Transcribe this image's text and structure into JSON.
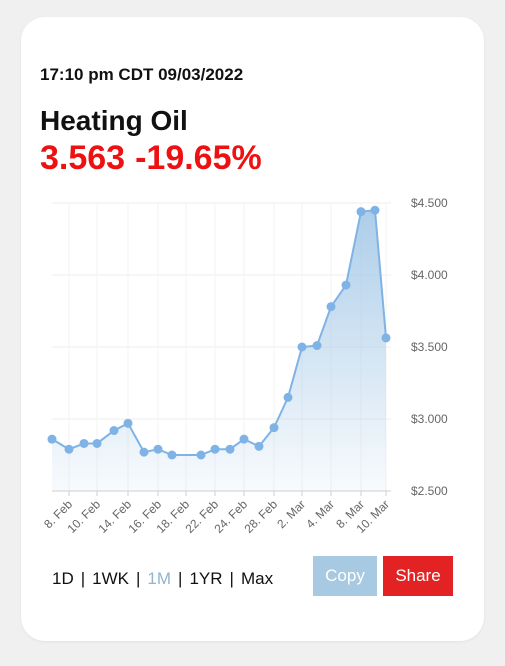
{
  "header": {
    "timestamp": "17:10 pm CDT 09/03/2022",
    "title": "Heating Oil",
    "price": "3.563",
    "change": "-19.65%"
  },
  "colors": {
    "accent_red": "#ee1111",
    "line": "#7fb3e6",
    "fill_top": "#a9cbe8",
    "copy_button": "#a7c9e1",
    "share_button": "#e32224",
    "active_range": "#8fb5cf"
  },
  "ranges": [
    {
      "label": "1D",
      "active": false
    },
    {
      "label": "1WK",
      "active": false
    },
    {
      "label": "1M",
      "active": true
    },
    {
      "label": "1YR",
      "active": false
    },
    {
      "label": "Max",
      "active": false
    }
  ],
  "buttons": {
    "copy": "Copy",
    "share": "Share"
  },
  "chart_data": {
    "type": "area",
    "x_ticks": [
      "8. Feb",
      "10. Feb",
      "14. Feb",
      "16. Feb",
      "18. Feb",
      "22. Feb",
      "24. Feb",
      "28. Feb",
      "2. Mar",
      "4. Mar",
      "8. Mar",
      "10. Mar"
    ],
    "y_ticks": [
      "$4.500",
      "$4.000",
      "$3.500",
      "$3.000",
      "$2.500"
    ],
    "ylim": [
      2.5,
      4.5
    ],
    "x": [
      "7. Feb",
      "8. Feb",
      "9. Feb",
      "10. Feb",
      "11. Feb",
      "14. Feb",
      "15. Feb",
      "16. Feb",
      "17. Feb",
      "18. Feb",
      "22. Feb",
      "23. Feb",
      "24. Feb",
      "25. Feb",
      "28. Feb",
      "1. Mar",
      "2. Mar",
      "3. Mar",
      "4. Mar",
      "7. Mar",
      "8. Mar",
      "9. Mar",
      "10. Mar"
    ],
    "values": [
      2.86,
      2.79,
      2.83,
      2.83,
      2.92,
      2.97,
      2.77,
      2.79,
      2.75,
      2.75,
      2.79,
      2.79,
      2.86,
      2.81,
      2.94,
      3.15,
      3.5,
      3.51,
      3.78,
      3.93,
      4.44,
      4.45,
      3.563
    ],
    "grid": true
  }
}
